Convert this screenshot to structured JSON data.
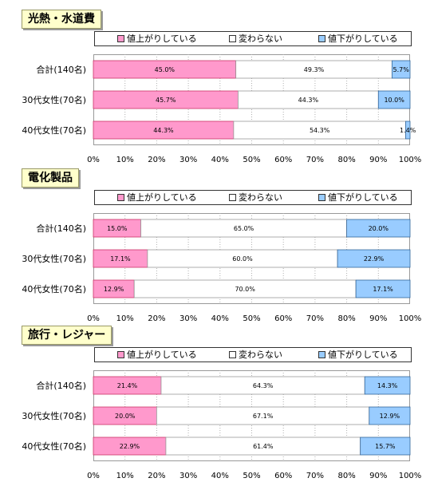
{
  "legend": {
    "up": "値上がりしている",
    "same": "変わらない",
    "down": "値下がりしている"
  },
  "colors": {
    "up": "#ff99cc",
    "same": "#ffffff",
    "down": "#99ccff",
    "grid": "#b0b0b0"
  },
  "chart_data": [
    {
      "type": "bar",
      "stacked": true,
      "orientation": "horizontal",
      "title": "光熱・水道費",
      "categories": [
        "合計(140名)",
        "30代女性(70名)",
        "40代女性(70名)"
      ],
      "series": [
        {
          "name": "値上がりしている",
          "values": [
            45.0,
            45.7,
            44.3
          ],
          "labels": [
            "45.0%",
            "45.7%",
            "44.3%"
          ]
        },
        {
          "name": "変わらない",
          "values": [
            49.3,
            44.3,
            54.3
          ],
          "labels": [
            "49.3%",
            "44.3%",
            "54.3%"
          ]
        },
        {
          "name": "値下がりしている",
          "values": [
            5.7,
            10.0,
            1.4
          ],
          "labels": [
            "5.7%",
            "10.0%",
            "1.4%"
          ]
        }
      ],
      "xlim": [
        0,
        100
      ],
      "xticks": [
        "0%",
        "10%",
        "20%",
        "30%",
        "40%",
        "50%",
        "60%",
        "70%",
        "80%",
        "90%",
        "100%"
      ],
      "grid": true,
      "legend_position": "top"
    },
    {
      "type": "bar",
      "stacked": true,
      "orientation": "horizontal",
      "title": "電化製品",
      "categories": [
        "合計(140名)",
        "30代女性(70名)",
        "40代女性(70名)"
      ],
      "series": [
        {
          "name": "値上がりしている",
          "values": [
            15.0,
            17.1,
            12.9
          ],
          "labels": [
            "15.0%",
            "17.1%",
            "12.9%"
          ]
        },
        {
          "name": "変わらない",
          "values": [
            65.0,
            60.0,
            70.0
          ],
          "labels": [
            "65.0%",
            "60.0%",
            "70.0%"
          ]
        },
        {
          "name": "値下がりしている",
          "values": [
            20.0,
            22.9,
            17.1
          ],
          "labels": [
            "20.0%",
            "22.9%",
            "17.1%"
          ]
        }
      ],
      "xlim": [
        0,
        100
      ],
      "xticks": [
        "0%",
        "10%",
        "20%",
        "30%",
        "40%",
        "50%",
        "60%",
        "70%",
        "80%",
        "90%",
        "100%"
      ],
      "grid": true,
      "legend_position": "top"
    },
    {
      "type": "bar",
      "stacked": true,
      "orientation": "horizontal",
      "title": "旅行・レジャー",
      "categories": [
        "合計(140名)",
        "30代女性(70名)",
        "40代女性(70名)"
      ],
      "series": [
        {
          "name": "値上がりしている",
          "values": [
            21.4,
            20.0,
            22.9
          ],
          "labels": [
            "21.4%",
            "20.0%",
            "22.9%"
          ]
        },
        {
          "name": "変わらない",
          "values": [
            64.3,
            67.1,
            61.4
          ],
          "labels": [
            "64.3%",
            "67.1%",
            "61.4%"
          ]
        },
        {
          "name": "値下がりしている",
          "values": [
            14.3,
            12.9,
            15.7
          ],
          "labels": [
            "14.3%",
            "12.9%",
            "15.7%"
          ]
        }
      ],
      "xlim": [
        0,
        100
      ],
      "xticks": [
        "0%",
        "10%",
        "20%",
        "30%",
        "40%",
        "50%",
        "60%",
        "70%",
        "80%",
        "90%",
        "100%"
      ],
      "grid": true,
      "legend_position": "top"
    }
  ]
}
